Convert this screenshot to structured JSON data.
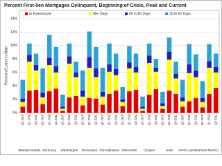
{
  "chart_data": {
    "type": "stacked-bar",
    "title": "Percent First-lien Mortgages Delinquent, Beginning of Crisis, Peak and Current",
    "y_label": "Percent of Loans in State",
    "groups": [
      "Massachusetts",
      "Kentucky",
      "Washington",
      "Tennessee",
      "Pennsylvania",
      "Wisconsin",
      "Oregon",
      "Utah",
      "North Carolina",
      "New Mexico"
    ],
    "categories": [
      "Q2 2007",
      "Q1 2010",
      "Q4 2011",
      "Q2 2007",
      "Q1 2010",
      "Q4 2011",
      "Q2 2007",
      "Q1 2010",
      "Q4 2011",
      "Q2 2007",
      "Q1 2010",
      "Q4 2011",
      "Q2 2007",
      "Q1 2010",
      "Q4 2011",
      "Q2 2007",
      "Q1 2010",
      "Q4 2011",
      "Q2 2007",
      "Q1 2010",
      "Q4 2011",
      "Q2 2007",
      "Q1 2010",
      "Q4 2011",
      "Q2 2007",
      "Q1 2010",
      "Q4 2011",
      "Q2 2007",
      "Q1 2010",
      "Q4 2011"
    ],
    "series": [
      {
        "name": "In Foreclosure",
        "color": "#e00000",
        "values": [
          0.9,
          3.3,
          3.4,
          1.3,
          3.2,
          3.6,
          0.3,
          2.3,
          2.5,
          1.1,
          2.2,
          2.1,
          1.2,
          2.8,
          3.3,
          1.0,
          3.2,
          3.4,
          0.3,
          2.7,
          3.5,
          0.6,
          3.3,
          2.8,
          0.9,
          1.7,
          2.2,
          0.8,
          2.8,
          3.7
        ]
      },
      {
        "name": "90+ Days",
        "color": "#ffff00",
        "values": [
          0.7,
          4.3,
          2.9,
          1.0,
          3.9,
          2.4,
          0.3,
          5.0,
          2.8,
          1.3,
          4.5,
          3.2,
          1.2,
          3.3,
          2.3,
          0.6,
          3.4,
          2.6,
          0.3,
          4.7,
          2.6,
          0.4,
          4.6,
          2.3,
          0.8,
          4.2,
          3.1,
          0.8,
          3.9,
          2.3
        ]
      },
      {
        "name": "60 to 90 Days",
        "color": "#1f1fbf",
        "values": [
          0.5,
          1.0,
          0.8,
          0.7,
          1.1,
          0.9,
          0.3,
          1.1,
          0.7,
          0.9,
          1.6,
          1.3,
          0.7,
          1.1,
          0.9,
          0.4,
          0.9,
          0.8,
          0.3,
          1.1,
          0.6,
          0.4,
          1.2,
          0.7,
          0.6,
          1.3,
          1.0,
          0.6,
          1.0,
          0.8
        ]
      },
      {
        "name": "30 to 60 Days",
        "color": "#2ba3d6",
        "values": [
          2.8,
          1.7,
          1.7,
          3.6,
          3.4,
          2.9,
          1.8,
          1.9,
          1.6,
          3.0,
          3.8,
          3.2,
          3.6,
          3.1,
          2.3,
          1.8,
          2.4,
          2.0,
          1.5,
          1.8,
          1.3,
          1.7,
          2.1,
          1.8,
          2.6,
          3.0,
          2.4,
          2.5,
          2.5,
          2.0
        ]
      }
    ],
    "ylim": [
      0,
      15
    ],
    "yticks": [
      {
        "value": 0,
        "label": "0%"
      },
      {
        "value": 2,
        "label": "2%"
      },
      {
        "value": 4,
        "label": "4%"
      },
      {
        "value": 6,
        "label": "6%"
      },
      {
        "value": 8,
        "label": "8%"
      },
      {
        "value": 10,
        "label": "10%"
      },
      {
        "value": 12,
        "label": "12%"
      },
      {
        "value": 14,
        "label": "14%"
      }
    ],
    "grid": true
  }
}
